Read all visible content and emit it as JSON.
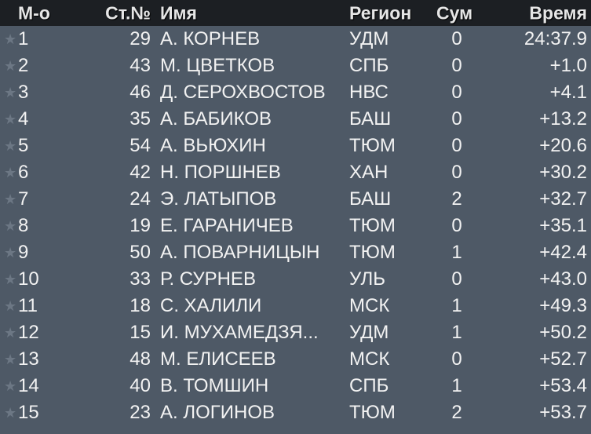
{
  "header": {
    "pos": "М-о",
    "bib": "Ст.№",
    "name": "Имя",
    "region": "Регион",
    "sum": "Сум",
    "time": "Время"
  },
  "colors": {
    "header_bg": "#1c1f23",
    "body_bg": "#4e5966",
    "star": "#6c7784"
  },
  "row_icon": "star-icon",
  "rows": [
    {
      "pos": "1",
      "bib": "29",
      "name": "А. КОРНЕВ",
      "region": "УДМ",
      "sum": "0",
      "time": "24:37.9"
    },
    {
      "pos": "2",
      "bib": "43",
      "name": "М. ЦВЕТКОВ",
      "region": "СПБ",
      "sum": "0",
      "time": "+1.0"
    },
    {
      "pos": "3",
      "bib": "46",
      "name": "Д. СЕРОХВОСТОВ",
      "region": "НВС",
      "sum": "0",
      "time": "+4.1"
    },
    {
      "pos": "4",
      "bib": "35",
      "name": "А. БАБИКОВ",
      "region": "БАШ",
      "sum": "0",
      "time": "+13.2"
    },
    {
      "pos": "5",
      "bib": "54",
      "name": "А. ВЬЮХИН",
      "region": "ТЮМ",
      "sum": "0",
      "time": "+20.6"
    },
    {
      "pos": "6",
      "bib": "42",
      "name": "Н. ПОРШНЕВ",
      "region": "ХАН",
      "sum": "0",
      "time": "+30.2"
    },
    {
      "pos": "7",
      "bib": "24",
      "name": "Э. ЛАТЫПОВ",
      "region": "БАШ",
      "sum": "2",
      "time": "+32.7"
    },
    {
      "pos": "8",
      "bib": "19",
      "name": "Е. ГАРАНИЧЕВ",
      "region": "ТЮМ",
      "sum": "0",
      "time": "+35.1"
    },
    {
      "pos": "9",
      "bib": "50",
      "name": "А. ПОВАРНИЦЫН",
      "region": "ТЮМ",
      "sum": "1",
      "time": "+42.4"
    },
    {
      "pos": "10",
      "bib": "33",
      "name": "Р. СУРНЕВ",
      "region": "УЛЬ",
      "sum": "0",
      "time": "+43.0"
    },
    {
      "pos": "11",
      "bib": "18",
      "name": "С. ХАЛИЛИ",
      "region": "МСК",
      "sum": "1",
      "time": "+49.3"
    },
    {
      "pos": "12",
      "bib": "15",
      "name": "И. МУХАМЕДЗЯ...",
      "region": "УДМ",
      "sum": "1",
      "time": "+50.2"
    },
    {
      "pos": "13",
      "bib": "48",
      "name": "М. ЕЛИСЕЕВ",
      "region": "МСК",
      "sum": "0",
      "time": "+52.7"
    },
    {
      "pos": "14",
      "bib": "40",
      "name": "В. ТОМШИН",
      "region": "СПБ",
      "sum": "1",
      "time": "+53.4"
    },
    {
      "pos": "15",
      "bib": "23",
      "name": "А. ЛОГИНОВ",
      "region": "ТЮМ",
      "sum": "2",
      "time": "+53.7"
    }
  ]
}
